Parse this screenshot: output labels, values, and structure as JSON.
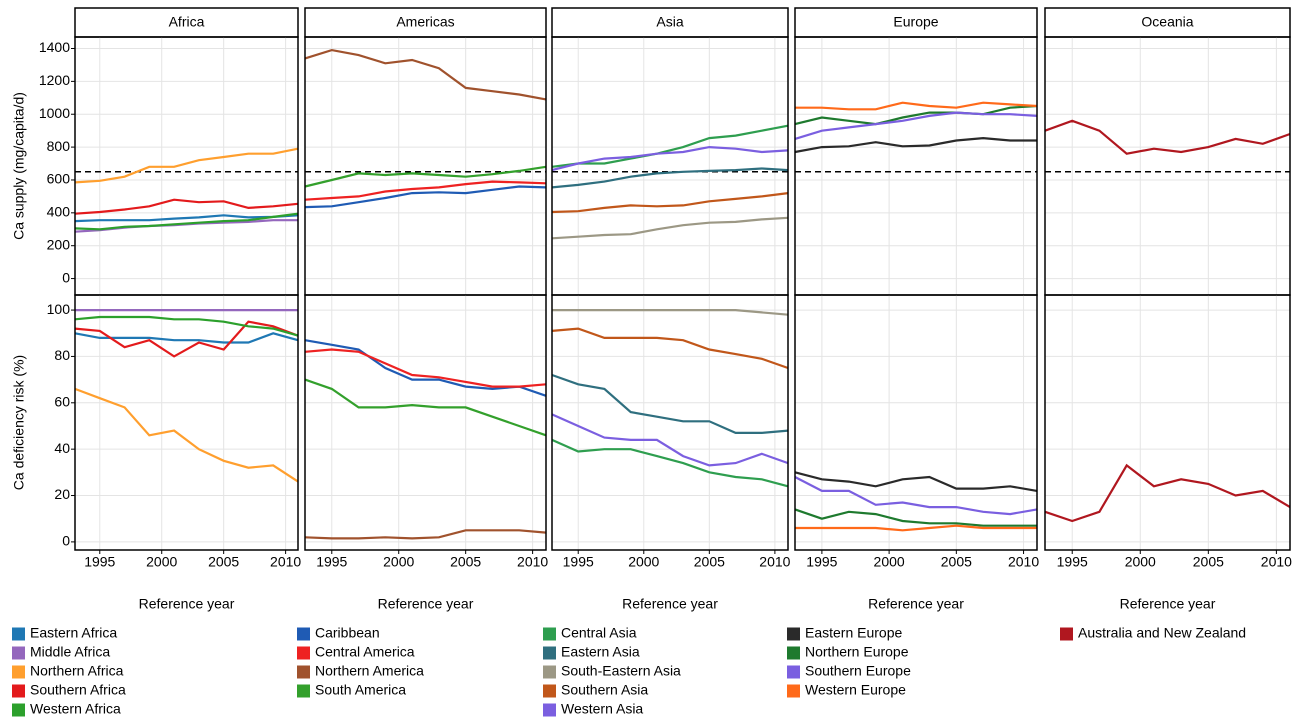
{
  "chart_data": {
    "type": "line",
    "x_label": "Reference year",
    "x": [
      1993,
      1995,
      1997,
      1999,
      2001,
      2003,
      2005,
      2007,
      2009,
      2011
    ],
    "xlim": [
      1993,
      2011
    ],
    "xticks": [
      1995,
      2000,
      2005,
      2010
    ],
    "grid": true,
    "rows": [
      {
        "ylabel": "Ca supply (mg/capita/d)",
        "ylim": [
          -100,
          1470
        ],
        "yticks": [
          0,
          200,
          400,
          600,
          800,
          1000,
          1200,
          1400
        ],
        "hline": 650
      },
      {
        "ylabel": "Ca deficiency risk (%)",
        "ylim": [
          -3.5,
          106.5
        ],
        "yticks": [
          0,
          20,
          40,
          60,
          80,
          100
        ]
      }
    ],
    "panels": [
      {
        "name": "Africa",
        "series": [
          {
            "name": "Eastern Africa",
            "color": "#1f78b4",
            "supply": [
              350,
              355,
              355,
              355,
              365,
              372,
              385,
              372,
              375,
              385
            ],
            "risk": [
              90,
              88,
              88,
              88,
              87,
              87,
              86,
              86,
              90,
              87
            ]
          },
          {
            "name": "Middle Africa",
            "color": "#9467bd",
            "supply": [
              285,
              295,
              310,
              320,
              325,
              335,
              340,
              345,
              355,
              355
            ],
            "risk": [
              100,
              100,
              100,
              100,
              100,
              100,
              100,
              100,
              100,
              100
            ]
          },
          {
            "name": "Northern Africa",
            "color": "#ff9f2e",
            "supply": [
              585,
              595,
              620,
              680,
              680,
              720,
              740,
              760,
              760,
              790
            ],
            "risk": [
              66,
              62,
              58,
              46,
              48,
              40,
              35,
              32,
              33,
              26
            ]
          },
          {
            "name": "Southern Africa",
            "color": "#e31a1c",
            "supply": [
              395,
              405,
              420,
              440,
              480,
              465,
              470,
              430,
              440,
              455
            ],
            "risk": [
              92,
              91,
              84,
              87,
              80,
              86,
              83,
              95,
              93,
              89
            ]
          },
          {
            "name": "Western Africa",
            "color": "#2ca02c",
            "supply": [
              305,
              300,
              315,
              320,
              330,
              340,
              350,
              355,
              375,
              395
            ],
            "risk": [
              96,
              97,
              97,
              97,
              96,
              96,
              95,
              93,
              92,
              89
            ]
          }
        ]
      },
      {
        "name": "Americas",
        "series": [
          {
            "name": "Caribbean",
            "color": "#1f5bb4",
            "supply": [
              435,
              440,
              465,
              490,
              520,
              525,
              520,
              540,
              560,
              555
            ],
            "risk": [
              87,
              85,
              83,
              75,
              70,
              70,
              67,
              66,
              67,
              63
            ]
          },
          {
            "name": "Central America",
            "color": "#ee2222",
            "supply": [
              480,
              490,
              500,
              530,
              545,
              555,
              575,
              590,
              585,
              580
            ],
            "risk": [
              82,
              83,
              82,
              77,
              72,
              71,
              69,
              67,
              67,
              68
            ]
          },
          {
            "name": "Northern America",
            "color": "#a0522d",
            "supply": [
              1340,
              1390,
              1360,
              1310,
              1330,
              1280,
              1160,
              1140,
              1120,
              1090
            ],
            "risk": [
              2,
              1.5,
              1.5,
              2,
              1.5,
              2,
              5,
              5,
              5,
              4
            ]
          },
          {
            "name": "South America",
            "color": "#33a02c",
            "supply": [
              560,
              600,
              640,
              630,
              640,
              630,
              620,
              635,
              655,
              680
            ],
            "risk": [
              70,
              66,
              58,
              58,
              59,
              58,
              58,
              54,
              50,
              46
            ]
          }
        ]
      },
      {
        "name": "Asia",
        "series": [
          {
            "name": "Central Asia",
            "color": "#2e9e4f",
            "supply": [
              680,
              700,
              700,
              730,
              760,
              800,
              855,
              870,
              900,
              930
            ],
            "risk": [
              44,
              39,
              40,
              40,
              37,
              34,
              30,
              28,
              27,
              24
            ]
          },
          {
            "name": "Eastern Asia",
            "color": "#2f6f7f",
            "supply": [
              555,
              570,
              590,
              620,
              640,
              650,
              655,
              660,
              670,
              660
            ],
            "risk": [
              72,
              68,
              66,
              56,
              54,
              52,
              52,
              47,
              47,
              48
            ]
          },
          {
            "name": "South-Eastern Asia",
            "color": "#9c9885",
            "supply": [
              245,
              255,
              265,
              270,
              300,
              325,
              340,
              345,
              360,
              370
            ],
            "risk": [
              100,
              100,
              100,
              100,
              100,
              100,
              100,
              100,
              99,
              98
            ]
          },
          {
            "name": "Southern Asia",
            "color": "#c1571a",
            "supply": [
              405,
              410,
              430,
              445,
              440,
              445,
              470,
              485,
              500,
              520
            ],
            "risk": [
              91,
              92,
              88,
              88,
              88,
              87,
              83,
              81,
              79,
              75
            ]
          },
          {
            "name": "Western Asia",
            "color": "#7b5fe0",
            "supply": [
              660,
              700,
              730,
              740,
              760,
              770,
              800,
              790,
              770,
              780
            ],
            "risk": [
              55,
              50,
              45,
              44,
              44,
              37,
              33,
              34,
              38,
              34
            ]
          }
        ]
      },
      {
        "name": "Europe",
        "series": [
          {
            "name": "Eastern Europe",
            "color": "#2a2a2a",
            "supply": [
              770,
              800,
              805,
              830,
              805,
              810,
              840,
              855,
              840,
              840
            ],
            "risk": [
              30,
              27,
              26,
              24,
              27,
              28,
              23,
              23,
              24,
              22
            ]
          },
          {
            "name": "Northern Europe",
            "color": "#1e7a2e",
            "supply": [
              940,
              980,
              960,
              940,
              980,
              1010,
              1010,
              1000,
              1040,
              1050
            ],
            "risk": [
              14,
              10,
              13,
              12,
              9,
              8,
              8,
              7,
              7,
              7
            ]
          },
          {
            "name": "Southern Europe",
            "color": "#7a5fe0",
            "supply": [
              850,
              900,
              920,
              940,
              960,
              990,
              1010,
              1000,
              1000,
              990
            ],
            "risk": [
              28,
              22,
              22,
              16,
              17,
              15,
              15,
              13,
              12,
              14
            ]
          },
          {
            "name": "Western Europe",
            "color": "#ff6a1a",
            "supply": [
              1040,
              1040,
              1030,
              1030,
              1070,
              1050,
              1040,
              1070,
              1060,
              1050
            ],
            "risk": [
              6,
              6,
              6,
              6,
              5,
              6,
              7,
              6,
              6,
              6
            ]
          }
        ]
      },
      {
        "name": "Oceania",
        "series": [
          {
            "name": "Australia and New Zealand",
            "color": "#b0171f",
            "supply": [
              900,
              960,
              900,
              760,
              790,
              770,
              800,
              850,
              820,
              880
            ],
            "risk": [
              13,
              9,
              13,
              33,
              24,
              27,
              25,
              20,
              22,
              15
            ]
          }
        ]
      }
    ]
  }
}
